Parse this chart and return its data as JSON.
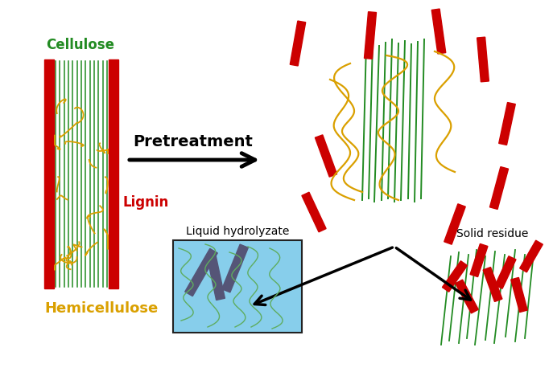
{
  "cellulose_color": "#228B22",
  "lignin_color": "#CC0000",
  "hemicellulose_color": "#DAA000",
  "liquid_box_color": "#87CEEB",
  "liquid_bar_color": "#555577",
  "liquid_line_color": "#5FAD5F",
  "solid_line_color": "#228B22",
  "background_color": "#FFFFFF",
  "label_cellulose": "Cellulose",
  "label_lignin": "Lignin",
  "label_hemicellulose": "Hemicellulose",
  "label_pretreatment": "Pretreatment",
  "label_liquid": "Liquid hydrolyzate",
  "label_solid": "Solid residue"
}
